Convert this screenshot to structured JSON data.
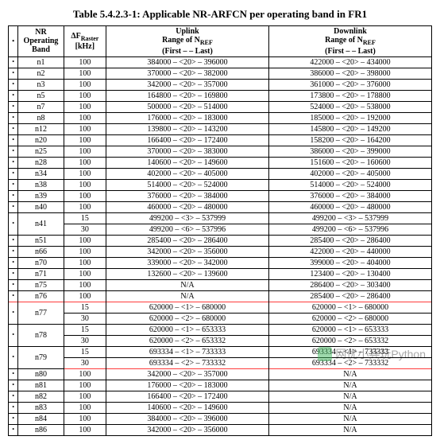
{
  "title": "Table 5.4.2.3-1: Applicable NR-ARFCN per operating band in FR1",
  "headers": {
    "band": "NR\nOperating\nBand",
    "raster_html": "ΔF<sub>Raster</sub>\n[kHz]",
    "uplink_html": "Uplink\nRange of N<sub>REF</sub>\n(First – <Step size> – Last)",
    "downlink_html": "Downlink\nRange of N<sub>REF</sub>\n(First – <Step size> – Last)"
  },
  "rows": [
    {
      "band": "n1",
      "raster": "100",
      "ul": "384000 – <20> – 396000",
      "dl": "422000 – <20> – 434000"
    },
    {
      "band": "n2",
      "raster": "100",
      "ul": "370000 – <20> – 382000",
      "dl": "386000 – <20> – 398000"
    },
    {
      "band": "n3",
      "raster": "100",
      "ul": "342000 – <20> – 357000",
      "dl": "361000 – <20> – 376000"
    },
    {
      "band": "n5",
      "raster": "100",
      "ul": "164800 – <20> – 169800",
      "dl": "173800 – <20> – 178800"
    },
    {
      "band": "n7",
      "raster": "100",
      "ul": "500000 – <20> – 514000",
      "dl": "524000 – <20> – 538000"
    },
    {
      "band": "n8",
      "raster": "100",
      "ul": "176000 – <20> – 183000",
      "dl": "185000 – <20> – 192000"
    },
    {
      "band": "n12",
      "raster": "100",
      "ul": "139800 – <20> – 143200",
      "dl": "145800 – <20> – 149200"
    },
    {
      "band": "n20",
      "raster": "100",
      "ul": "166400 – <20> – 172400",
      "dl": "158200 – <20> – 164200"
    },
    {
      "band": "n25",
      "raster": "100",
      "ul": "370000 – <20> – 383000",
      "dl": "386000 – <20> – 399000"
    },
    {
      "band": "n28",
      "raster": "100",
      "ul": "140600 – <20> – 149600",
      "dl": "151600 – <20> – 160600"
    },
    {
      "band": "n34",
      "raster": "100",
      "ul": "402000 – <20> – 405000",
      "dl": "402000 – <20> – 405000"
    },
    {
      "band": "n38",
      "raster": "100",
      "ul": "514000 – <20> – 524000",
      "dl": "514000 – <20> – 524000"
    },
    {
      "band": "n39",
      "raster": "100",
      "ul": "376000 – <20> – 384000",
      "dl": "376000 – <20> – 384000"
    },
    {
      "band": "n40",
      "raster": "100",
      "ul": "460000 – <20> – 480000",
      "dl": "460000 – <20> – 480000"
    },
    {
      "band": "n41",
      "rowspan": 2,
      "raster": "15",
      "ul": "499200 – <3> – 537999",
      "dl": "499200 – <3> – 537999"
    },
    {
      "raster": "30",
      "ul": "499200 – <6> – 537996",
      "dl": "499200 – <6> – 537996"
    },
    {
      "band": "n51",
      "raster": "100",
      "ul": "285400 – <20> – 286400",
      "dl": "285400 – <20> – 286400"
    },
    {
      "band": "n66",
      "raster": "100",
      "ul": "342000 – <20> – 356000",
      "dl": "422000 – <20> – 440000"
    },
    {
      "band": "n70",
      "raster": "100",
      "ul": "339000 – <20> – 342000",
      "dl": "399000 – <20> – 404000"
    },
    {
      "band": "n71",
      "raster": "100",
      "ul": "132600 – <20> – 139600",
      "dl": "123400 – <20> – 130400"
    },
    {
      "band": "n75",
      "raster": "100",
      "ul": "N/A",
      "dl": "286400 – <20> – 303400"
    },
    {
      "band": "n76",
      "raster": "100",
      "ul": "N/A",
      "dl": "285400 – <20> – 286400",
      "hl": true
    },
    {
      "band": "n77",
      "rowspan": 2,
      "raster": "15",
      "ul": "620000 – <1> – 680000",
      "dl": "620000 – <1> – 680000"
    },
    {
      "raster": "30",
      "ul": "620000 – <2> – 680000",
      "dl": "620000 – <2> – 680000"
    },
    {
      "band": "n78",
      "rowspan": 2,
      "raster": "15",
      "ul": "620000 – <1> – 653333",
      "dl": "620000 – <1> – 653333"
    },
    {
      "raster": "30",
      "ul": "620000 – <2> – 653332",
      "dl": "620000 – <2> – 653332"
    },
    {
      "band": "n79",
      "rowspan": 2,
      "raster": "15",
      "ul": "693334 – <1> – 733333",
      "dl": "693334 – <1> – 733333"
    },
    {
      "raster": "30",
      "ul": "693334 – <2> – 733332",
      "dl": "693334 – <2> – 733332",
      "hl": true
    },
    {
      "band": "n80",
      "raster": "100",
      "ul": "342000 – <20> – 357000",
      "dl": "N/A"
    },
    {
      "band": "n81",
      "raster": "100",
      "ul": "176000 – <20> – 183000",
      "dl": "N/A"
    },
    {
      "band": "n82",
      "raster": "100",
      "ul": "166400 – <20> – 172400",
      "dl": "N/A"
    },
    {
      "band": "n83",
      "raster": "100",
      "ul": "140600 – <20> – 149600",
      "dl": "N/A"
    },
    {
      "band": "n84",
      "raster": "100",
      "ul": "384000 – <20> – 396000",
      "dl": "N/A"
    },
    {
      "band": "n86",
      "raster": "100",
      "ul": "342000 – <20> – 356000",
      "dl": "N/A"
    }
  ],
  "watermark": "网优小兵玩Python",
  "colors": {
    "border": "#000000",
    "highlight": "#ff3b3b",
    "background": "#ffffff"
  }
}
